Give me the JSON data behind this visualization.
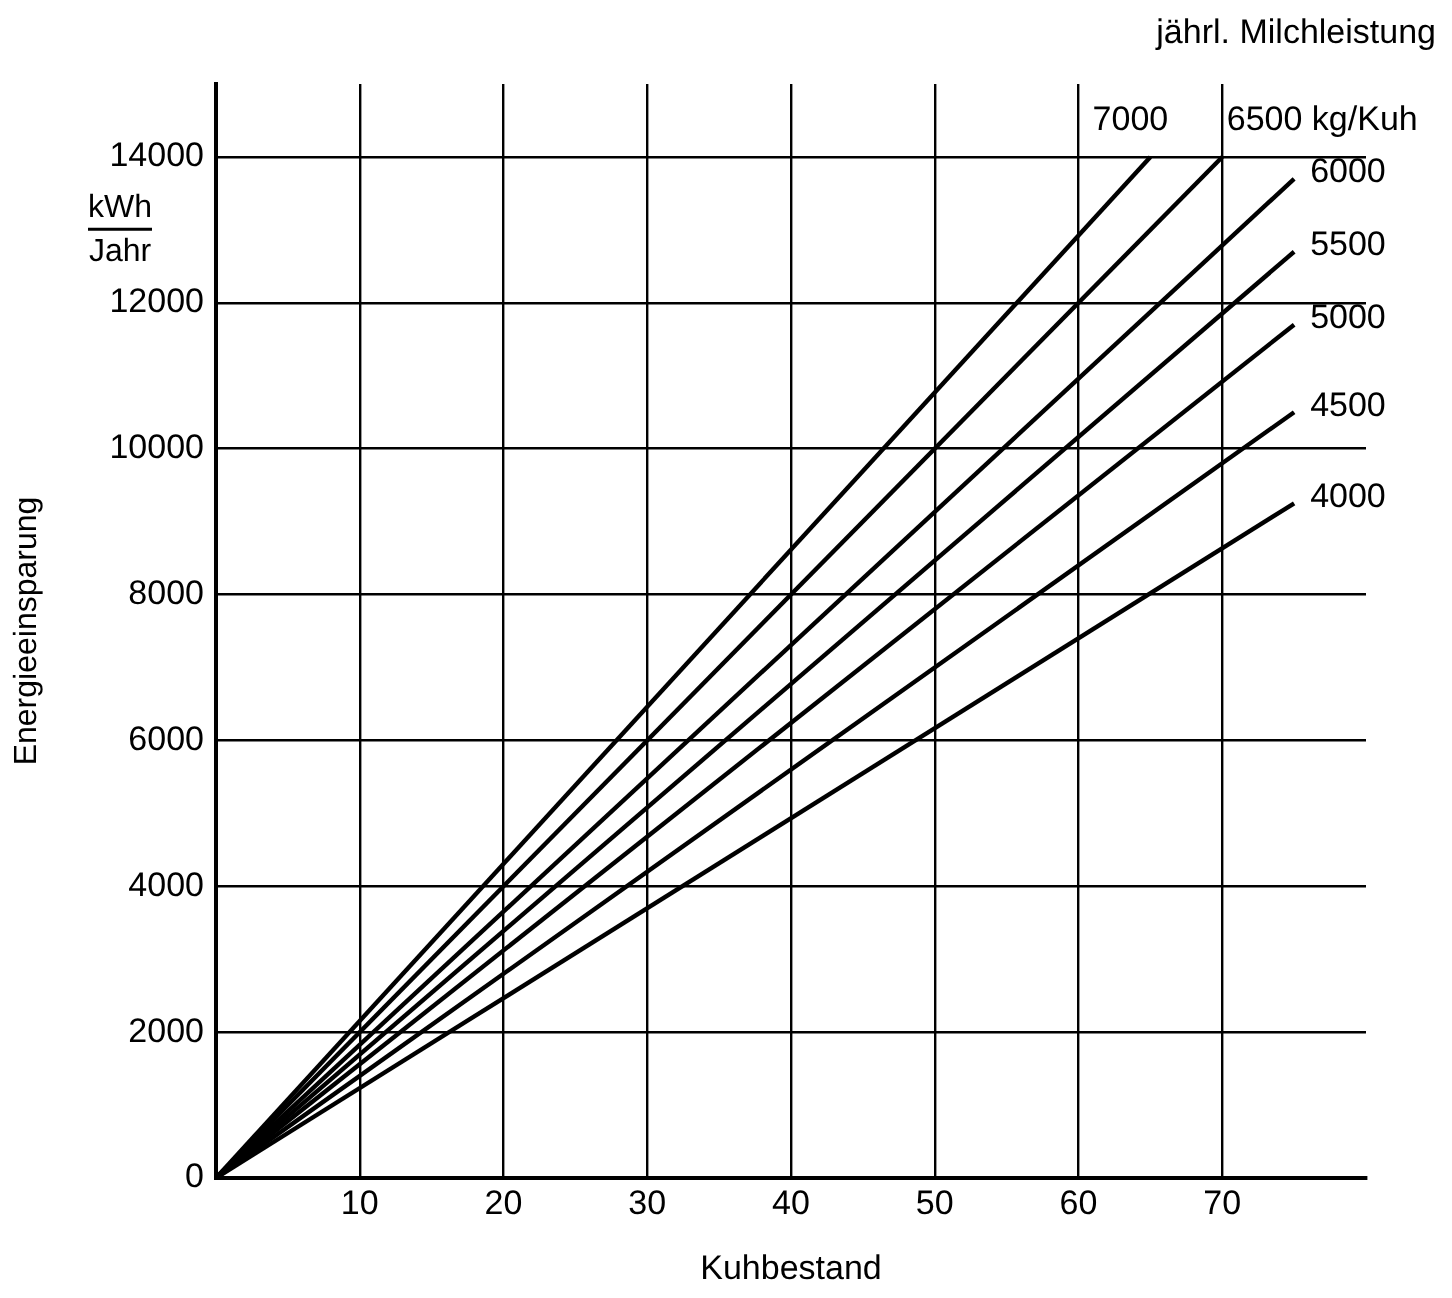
{
  "chart_data": {
    "type": "line",
    "xlabel": "Kuhbestand",
    "ylabel": "Energieeinsparung",
    "legend_title": "jährl. Milchleistung",
    "annotations": [
      "kWh",
      "Jahr"
    ],
    "xlim": [
      0,
      80
    ],
    "xticks": [
      {
        "value": 0,
        "label": null
      },
      10,
      20,
      30,
      40,
      50,
      60,
      70
    ],
    "ylim": [
      0,
      15000
    ],
    "yticks": [
      0,
      2000,
      4000,
      6000,
      8000,
      10000,
      12000,
      14000
    ],
    "grid": true,
    "legend": false,
    "marker": "none",
    "line_style": "solid",
    "series": [
      {
        "name": "7000",
        "color": "#000000",
        "x": [
          0,
          65
        ],
        "values": [
          0,
          14000
        ]
      },
      {
        "name": "6500 kg/Kuh",
        "color": "#000000",
        "x": [
          0,
          70
        ],
        "values": [
          0,
          14000
        ]
      },
      {
        "name": "6000",
        "color": "#000000",
        "x": [
          0,
          75
        ],
        "values": [
          0,
          13700
        ]
      },
      {
        "name": "5500",
        "color": "#000000",
        "x": [
          0,
          75
        ],
        "values": [
          0,
          12700
        ]
      },
      {
        "name": "5000",
        "color": "#000000",
        "x": [
          0,
          75
        ],
        "values": [
          0,
          11700
        ]
      },
      {
        "name": "4500",
        "color": "#000000",
        "x": [
          0,
          75
        ],
        "values": [
          0,
          10500
        ]
      },
      {
        "name": "4000",
        "color": "#000000",
        "x": [
          0,
          75
        ],
        "values": [
          0,
          9250
        ]
      }
    ]
  }
}
